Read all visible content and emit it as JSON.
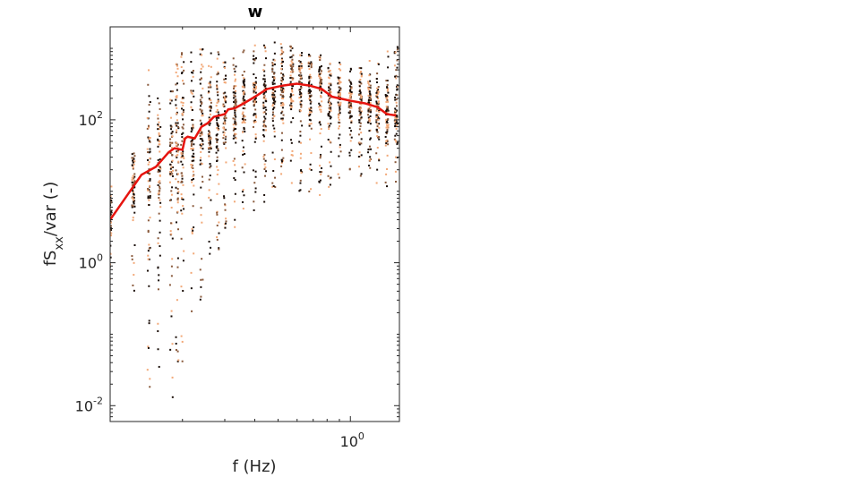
{
  "chart_data": {
    "type": "scatter",
    "title": "w",
    "xlabel": "f (Hz)",
    "ylabel": {
      "base": "fS",
      "subscript": "xx",
      "rest": "/var (-)"
    },
    "xscale": "log",
    "yscale": "log",
    "xlim": [
      0.1,
      1.6
    ],
    "ylim": [
      0.006,
      2000
    ],
    "xticks": [
      {
        "value": 1,
        "base": "10",
        "exp": "0"
      }
    ],
    "yticks": [
      {
        "value": 0.01,
        "base": "10",
        "exp": "-2"
      },
      {
        "value": 1,
        "base": "10",
        "exp": "0"
      },
      {
        "value": 100,
        "base": "10",
        "exp": "2"
      }
    ],
    "grid": false,
    "legend": "none",
    "colors": {
      "dark": "#1a0e08",
      "mid": "#8a5a3c",
      "light": "#f2a877",
      "median": "#e6140f"
    },
    "scatter_clusters": [
      {
        "x": 0.1,
        "ymin": 0.5,
        "ymax": 12
      },
      {
        "x": 0.125,
        "ymin": 0.3,
        "ymax": 35
      },
      {
        "x": 0.145,
        "ymin": 0.008,
        "ymax": 550
      },
      {
        "x": 0.16,
        "ymin": 0.03,
        "ymax": 220
      },
      {
        "x": 0.18,
        "ymin": 0.011,
        "ymax": 250
      },
      {
        "x": 0.19,
        "ymin": 0.04,
        "ymax": 600
      },
      {
        "x": 0.2,
        "ymin": 0.03,
        "ymax": 1300
      },
      {
        "x": 0.22,
        "ymin": 0.15,
        "ymax": 900
      },
      {
        "x": 0.24,
        "ymin": 0.3,
        "ymax": 1000
      },
      {
        "x": 0.26,
        "ymin": 1.0,
        "ymax": 900
      },
      {
        "x": 0.28,
        "ymin": 1.5,
        "ymax": 900
      },
      {
        "x": 0.3,
        "ymin": 3,
        "ymax": 900
      },
      {
        "x": 0.33,
        "ymin": 3,
        "ymax": 950
      },
      {
        "x": 0.36,
        "ymin": 5,
        "ymax": 1000
      },
      {
        "x": 0.4,
        "ymin": 5,
        "ymax": 1100
      },
      {
        "x": 0.44,
        "ymin": 4,
        "ymax": 1100
      },
      {
        "x": 0.48,
        "ymin": 8,
        "ymax": 1300
      },
      {
        "x": 0.52,
        "ymin": 10,
        "ymax": 1200
      },
      {
        "x": 0.57,
        "ymin": 10,
        "ymax": 1100
      },
      {
        "x": 0.62,
        "ymin": 10,
        "ymax": 1000
      },
      {
        "x": 0.68,
        "ymin": 8,
        "ymax": 900
      },
      {
        "x": 0.75,
        "ymin": 8,
        "ymax": 800
      },
      {
        "x": 0.82,
        "ymin": 10,
        "ymax": 700
      },
      {
        "x": 0.9,
        "ymin": 15,
        "ymax": 650
      },
      {
        "x": 1.0,
        "ymin": 20,
        "ymax": 600
      },
      {
        "x": 1.1,
        "ymin": 15,
        "ymax": 700
      },
      {
        "x": 1.2,
        "ymin": 15,
        "ymax": 800
      },
      {
        "x": 1.3,
        "ymin": 12,
        "ymax": 900
      },
      {
        "x": 1.42,
        "ymin": 10,
        "ymax": 1000
      },
      {
        "x": 1.55,
        "ymin": 12,
        "ymax": 1200
      }
    ],
    "series": [
      {
        "type": "line",
        "x": [
          0.1,
          0.135,
          0.155,
          0.175,
          0.185,
          0.2,
          0.205,
          0.21,
          0.225,
          0.24,
          0.255,
          0.27,
          0.3,
          0.31,
          0.33,
          0.36,
          0.4,
          0.45,
          0.52,
          0.6,
          0.68,
          0.76,
          0.84,
          0.9,
          1.0,
          1.15,
          1.3,
          1.42,
          1.55
        ],
        "y": [
          4,
          17,
          22,
          35,
          40,
          38,
          55,
          58,
          55,
          80,
          90,
          110,
          120,
          140,
          145,
          170,
          210,
          270,
          300,
          320,
          300,
          270,
          210,
          200,
          185,
          170,
          150,
          120,
          115
        ]
      }
    ]
  }
}
